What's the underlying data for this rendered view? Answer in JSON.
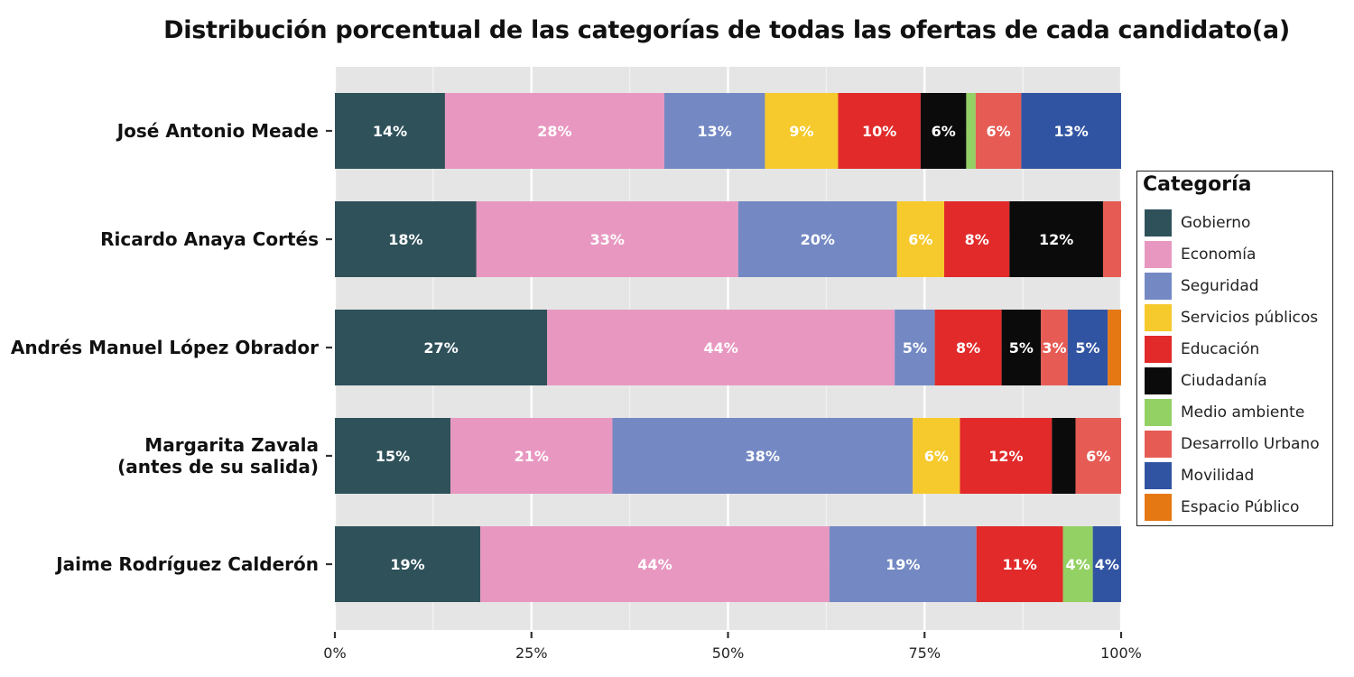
{
  "chart_data": {
    "type": "bar",
    "orientation": "horizontal",
    "stacked": true,
    "title": "Distribución porcentual de las categorías de todas las ofertas de cada candidato(a)",
    "xlabel": "",
    "ylabel": "",
    "xlim": [
      0,
      100
    ],
    "x_ticks": [
      "0%",
      "25%",
      "50%",
      "75%",
      "100%"
    ],
    "grid": true,
    "legend_position": "right",
    "legend_title": "Categoría",
    "categories": [
      [
        "José Antonio Meade"
      ],
      [
        "Ricardo Anaya Cortés"
      ],
      [
        "Andrés Manuel López Obrador"
      ],
      [
        "Margarita Zavala",
        "(antes de su salida)"
      ],
      [
        "Jaime Rodríguez Calderón"
      ]
    ],
    "series": [
      {
        "name": "Gobierno",
        "color": "#2f515a",
        "values": [
          14,
          18,
          27,
          14.7,
          18.5
        ],
        "labels": [
          "14%",
          "18%",
          "27%",
          "15%",
          "19%"
        ]
      },
      {
        "name": "Economía",
        "color": "#e898c0",
        "values": [
          27.9,
          33.3,
          44.2,
          20.6,
          44.4
        ],
        "labels": [
          "28%",
          "33%",
          "44%",
          "21%",
          "44%"
        ]
      },
      {
        "name": "Seguridad",
        "color": "#7489c3",
        "values": [
          12.8,
          20.2,
          5.1,
          38.2,
          18.7
        ],
        "labels": [
          "13%",
          "20%",
          "5%",
          "38%",
          "19%"
        ]
      },
      {
        "name": "Servicios públicos",
        "color": "#f6ca2c",
        "values": [
          9.3,
          6,
          0,
          6,
          0
        ],
        "labels": [
          "9%",
          "6%",
          "",
          "6%",
          ""
        ]
      },
      {
        "name": "Educación",
        "color": "#e22a2a",
        "values": [
          10.5,
          8.3,
          8.5,
          11.7,
          11
        ],
        "labels": [
          "10%",
          "8%",
          "8%",
          "12%",
          "11%"
        ]
      },
      {
        "name": "Ciudadanía",
        "color": "#0b0b0b",
        "values": [
          5.8,
          11.9,
          5,
          3,
          0
        ],
        "labels": [
          "6%",
          "12%",
          "5%",
          "",
          ""
        ]
      },
      {
        "name": "Medio ambiente",
        "color": "#93d164",
        "values": [
          1.2,
          0,
          0,
          0,
          3.8
        ],
        "labels": [
          "",
          "",
          "",
          "",
          "4%"
        ]
      },
      {
        "name": "Desarrollo Urbano",
        "color": "#e65c55",
        "values": [
          5.8,
          2.3,
          3.4,
          5.8,
          0
        ],
        "labels": [
          "6%",
          "",
          "3%",
          "6%",
          ""
        ]
      },
      {
        "name": "Movilidad",
        "color": "#3154a2",
        "values": [
          12.7,
          0,
          5.1,
          0,
          3.6
        ],
        "labels": [
          "13%",
          "",
          "5%",
          "",
          "4%"
        ]
      },
      {
        "name": "Espacio Público",
        "color": "#e57813",
        "values": [
          0,
          0,
          1.7,
          0,
          0
        ],
        "labels": [
          "",
          "",
          "",
          "",
          ""
        ]
      }
    ]
  }
}
